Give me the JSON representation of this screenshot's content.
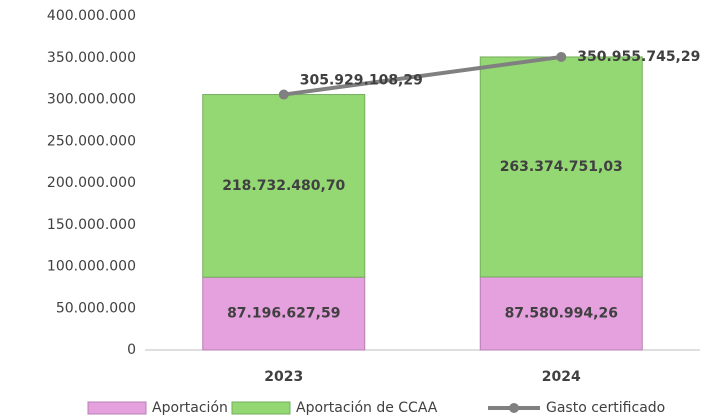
{
  "chart_data": {
    "type": "bar",
    "categories": [
      "2023",
      "2024"
    ],
    "series": [
      {
        "name": "Aportación AGE",
        "type": "bar",
        "color": "#e5a0de",
        "values": [
          87196627.59,
          87580994.26
        ],
        "value_labels": [
          "87.196.627,59",
          "87.580.994,26"
        ]
      },
      {
        "name": "Aportación de CCAA",
        "type": "bar",
        "color": "#93d873",
        "values": [
          218732480.7,
          263374751.03
        ],
        "value_labels": [
          "218.732.480,70",
          "263.374.751,03"
        ]
      },
      {
        "name": "Gasto certificado",
        "type": "line",
        "color": "#808080",
        "values": [
          305929108.29,
          350955745.29
        ],
        "value_labels": [
          "305.929.108,29",
          "350.955.745,29"
        ]
      }
    ],
    "stacked": true,
    "ylim": [
      0,
      400000000
    ],
    "yticks": [
      0,
      {
        "value": 50000000,
        "label": "50.000.000"
      },
      {
        "value": 100000000,
        "label": "100.000.000"
      },
      {
        "value": 150000000,
        "label": "150.000.000"
      },
      {
        "value": 200000000,
        "label": "200.000.000"
      },
      {
        "value": 250000000,
        "label": "250.000.000"
      },
      {
        "value": 300000000,
        "label": "300.000.000"
      },
      {
        "value": 350000000,
        "label": "350.000.000"
      },
      {
        "value": 400000000,
        "label": "400.000.000"
      }
    ],
    "grid": false,
    "legend": "bottom"
  }
}
